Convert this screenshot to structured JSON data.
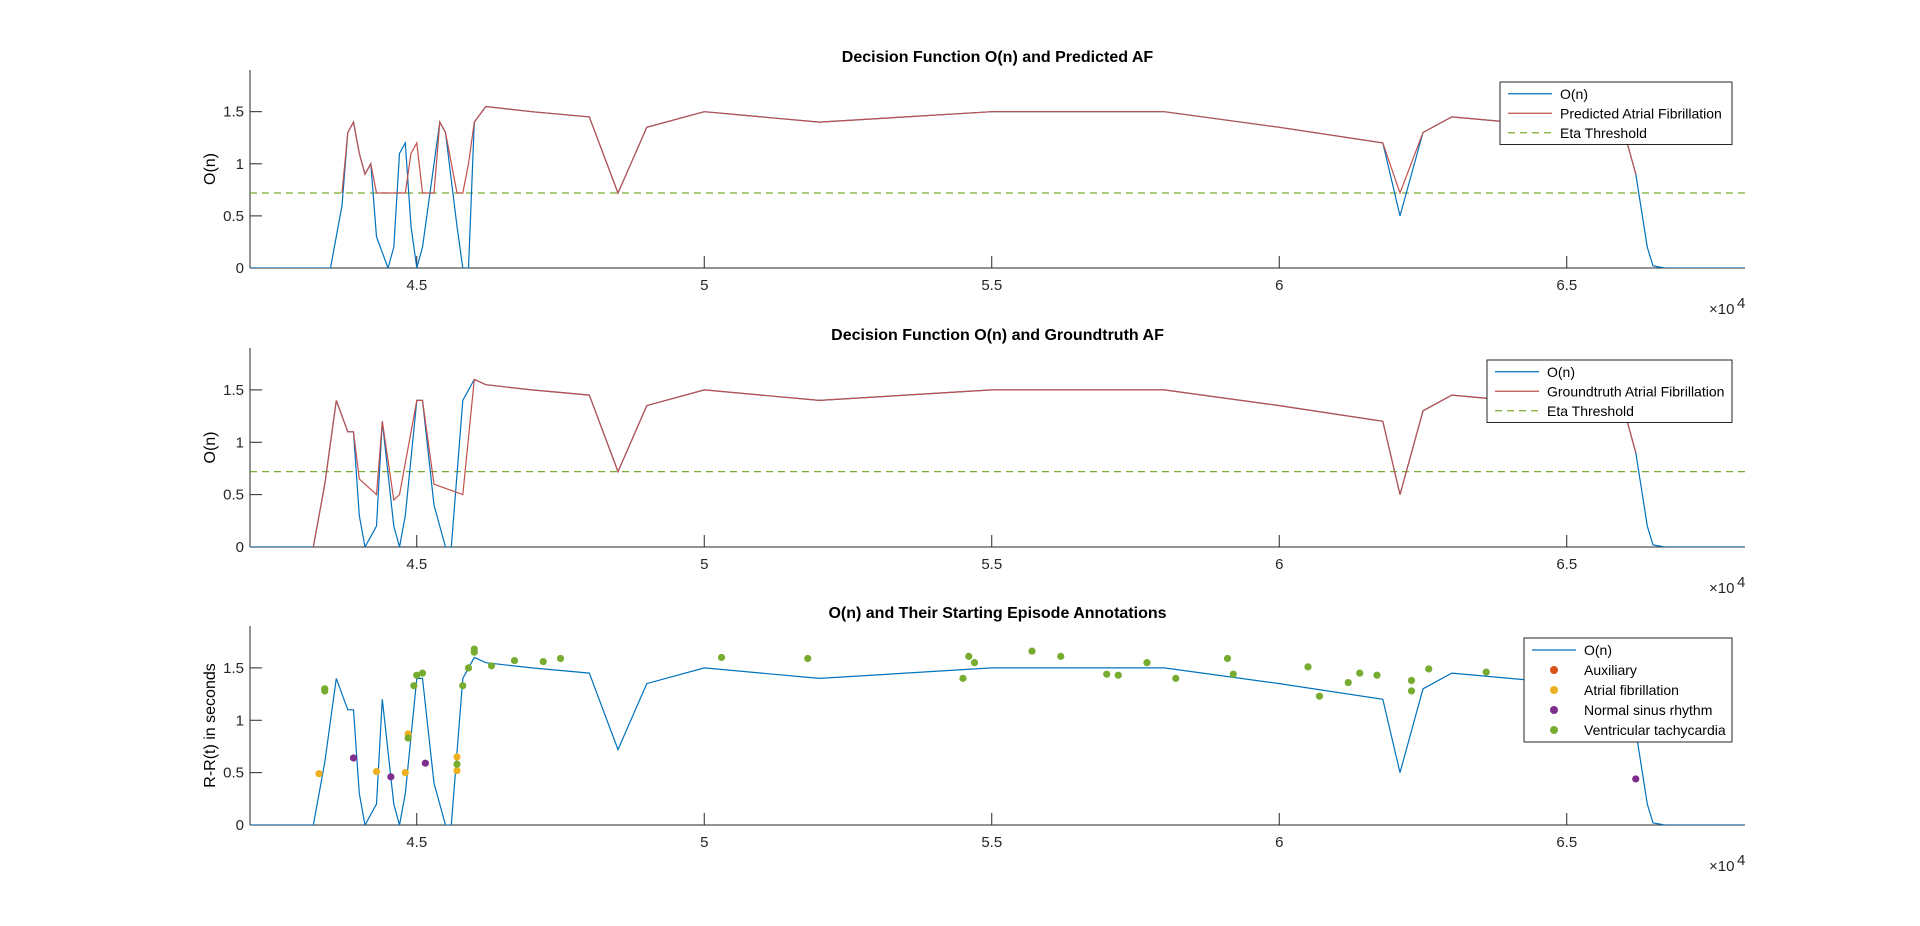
{
  "chart_data": [
    {
      "type": "line",
      "title": "Decision Function O(n) and Predicted AF",
      "xlabel": "",
      "ylabel": "O(n)",
      "xlim": [
        42100,
        68100
      ],
      "ylim": [
        0,
        1.9
      ],
      "x_multiplier": "×10",
      "x_multiplier_exp": "4",
      "xticks": [
        45000,
        50000,
        55000,
        60000,
        65000
      ],
      "xtick_labels": [
        "4.5",
        "5",
        "5.5",
        "6",
        "6.5"
      ],
      "yticks": [
        0,
        0.5,
        1,
        1.5
      ],
      "ytick_labels": [
        "0",
        "0.5",
        "1",
        "1.5"
      ],
      "threshold": 0.72,
      "legend": [
        "O(n)",
        "Predicted Atrial Fibrillation",
        "Eta Threshold"
      ],
      "legend_position": "top-right",
      "series": [
        {
          "name": "O(n)",
          "color": "#0072BD",
          "style": "solid",
          "x": [
            42100,
            43500,
            43700,
            43800,
            43900,
            44000,
            44100,
            44200,
            44300,
            44500,
            44600,
            44700,
            44800,
            44900,
            45000,
            45100,
            45300,
            45400,
            45500,
            45700,
            45800,
            45900,
            46000,
            46200,
            47000,
            48000,
            48500,
            49000,
            50000,
            52000,
            55000,
            58000,
            60000,
            61800,
            62100,
            62500,
            63000,
            65000,
            66000,
            66200,
            66400,
            66500,
            66700,
            68100
          ],
          "y": [
            0,
            0,
            0.6,
            1.3,
            1.4,
            1.1,
            0.9,
            1.0,
            0.3,
            0,
            0.2,
            1.1,
            1.2,
            0.4,
            0,
            0.2,
            1.0,
            1.4,
            1.3,
            0.4,
            0,
            0,
            1.4,
            1.55,
            1.5,
            1.45,
            0.72,
            1.35,
            1.5,
            1.4,
            1.5,
            1.5,
            1.35,
            1.2,
            0.5,
            1.3,
            1.45,
            1.35,
            1.3,
            0.9,
            0.2,
            0.02,
            0,
            0
          ]
        },
        {
          "name": "Predicted Atrial Fibrillation",
          "color": "#C0504D",
          "style": "solid",
          "x": [
            43700,
            43800,
            43900,
            44000,
            44100,
            44200,
            44300,
            44800,
            44900,
            45000,
            45100,
            45300,
            45400,
            45500,
            45700,
            45800,
            45900,
            46000,
            46200,
            47000,
            48000,
            48500,
            49000,
            50000,
            52000,
            55000,
            58000,
            60000,
            61800,
            62100,
            62500,
            63000,
            65000,
            66000,
            66200
          ],
          "y": [
            0.72,
            1.3,
            1.4,
            1.1,
            0.9,
            1.0,
            0.72,
            0.72,
            1.1,
            1.2,
            0.72,
            0.72,
            1.4,
            1.3,
            0.72,
            0.72,
            1.0,
            1.4,
            1.55,
            1.5,
            1.45,
            0.72,
            1.35,
            1.5,
            1.4,
            1.5,
            1.5,
            1.35,
            1.2,
            0.72,
            1.3,
            1.45,
            1.35,
            1.3,
            0.9
          ]
        },
        {
          "name": "Eta Threshold",
          "color": "#77AC30",
          "style": "dashed",
          "x": [
            42100,
            68100
          ],
          "y": [
            0.72,
            0.72
          ]
        }
      ]
    },
    {
      "type": "line",
      "title": "Decision Function O(n) and Groundtruth AF",
      "xlabel": "",
      "ylabel": "O(n)",
      "xlim": [
        42100,
        68100
      ],
      "ylim": [
        0,
        1.9
      ],
      "x_multiplier": "×10",
      "x_multiplier_exp": "4",
      "xticks": [
        45000,
        50000,
        55000,
        60000,
        65000
      ],
      "xtick_labels": [
        "4.5",
        "5",
        "5.5",
        "6",
        "6.5"
      ],
      "yticks": [
        0,
        0.5,
        1,
        1.5
      ],
      "ytick_labels": [
        "0",
        "0.5",
        "1",
        "1.5"
      ],
      "threshold": 0.72,
      "legend": [
        "O(n)",
        "Groundtruth Atrial Fibrillation",
        "Eta Threshold"
      ],
      "legend_position": "top-right",
      "series": [
        {
          "name": "O(n)",
          "color": "#0072BD",
          "style": "solid",
          "x": [
            42100,
            43200,
            43400,
            43600,
            43800,
            43900,
            44000,
            44100,
            44300,
            44400,
            44600,
            44700,
            44800,
            45000,
            45100,
            45300,
            45500,
            45600,
            45800,
            46000,
            46200,
            47000,
            48000,
            48500,
            49000,
            50000,
            52000,
            55000,
            58000,
            60000,
            61800,
            62100,
            62500,
            63000,
            65000,
            66000,
            66200,
            66400,
            66500,
            66700,
            68100
          ],
          "y": [
            0,
            0,
            0.6,
            1.4,
            1.1,
            1.1,
            0.3,
            0,
            0.2,
            1.2,
            0.2,
            0,
            0.3,
            1.4,
            1.4,
            0.4,
            0,
            0,
            1.4,
            1.6,
            1.55,
            1.5,
            1.45,
            0.72,
            1.35,
            1.5,
            1.4,
            1.5,
            1.5,
            1.35,
            1.2,
            0.5,
            1.3,
            1.45,
            1.35,
            1.3,
            0.9,
            0.2,
            0.02,
            0,
            0
          ]
        },
        {
          "name": "Groundtruth Atrial Fibrillation",
          "color": "#C0504D",
          "style": "solid",
          "x": [
            43200,
            43400,
            43600,
            43800,
            43900,
            44000,
            44300,
            44400,
            44600,
            44700,
            45000,
            45100,
            45300,
            45800,
            46000,
            46200,
            47000,
            48000,
            48500,
            49000,
            50000,
            52000,
            55000,
            58000,
            60000,
            61800,
            62100,
            62500,
            63000,
            65000,
            66000,
            66200
          ],
          "y": [
            0,
            0.6,
            1.4,
            1.1,
            1.1,
            0.65,
            0.5,
            1.2,
            0.45,
            0.5,
            1.4,
            1.4,
            0.6,
            0.5,
            1.6,
            1.55,
            1.5,
            1.45,
            0.72,
            1.35,
            1.5,
            1.4,
            1.5,
            1.5,
            1.35,
            1.2,
            0.5,
            1.3,
            1.45,
            1.35,
            1.3,
            0.9
          ]
        },
        {
          "name": "Eta Threshold",
          "color": "#77AC30",
          "style": "dashed",
          "x": [
            42100,
            68100
          ],
          "y": [
            0.72,
            0.72
          ]
        }
      ]
    },
    {
      "type": "line",
      "title": "O(n) and Their Starting Episode Annotations",
      "xlabel": "",
      "ylabel": "R-R(t) in seconds",
      "xlim": [
        42100,
        68100
      ],
      "ylim": [
        0,
        1.9
      ],
      "x_multiplier": "×10",
      "x_multiplier_exp": "4",
      "xticks": [
        45000,
        50000,
        55000,
        60000,
        65000
      ],
      "xtick_labels": [
        "4.5",
        "5",
        "5.5",
        "6",
        "6.5"
      ],
      "yticks": [
        0,
        0.5,
        1,
        1.5
      ],
      "ytick_labels": [
        "0",
        "0.5",
        "1",
        "1.5"
      ],
      "legend": [
        "O(n)",
        "Auxiliary",
        "Atrial fibrillation",
        "Normal sinus rhythm",
        "Ventricular tachycardia"
      ],
      "legend_position": "top-right",
      "series": [
        {
          "name": "O(n)",
          "color": "#0072BD",
          "style": "solid",
          "x": [
            42100,
            43200,
            43400,
            43600,
            43800,
            43900,
            44000,
            44100,
            44300,
            44400,
            44600,
            44700,
            44800,
            45000,
            45100,
            45300,
            45500,
            45600,
            45800,
            46000,
            46200,
            47000,
            48000,
            48500,
            49000,
            50000,
            52000,
            55000,
            58000,
            60000,
            61800,
            62100,
            62500,
            63000,
            65000,
            66000,
            66200,
            66400,
            66500,
            66700,
            68100
          ],
          "y": [
            0,
            0,
            0.6,
            1.4,
            1.1,
            1.1,
            0.3,
            0,
            0.2,
            1.2,
            0.2,
            0,
            0.3,
            1.4,
            1.4,
            0.4,
            0,
            0,
            1.4,
            1.6,
            1.55,
            1.5,
            1.45,
            0.72,
            1.35,
            1.5,
            1.4,
            1.5,
            1.5,
            1.35,
            1.2,
            0.5,
            1.3,
            1.45,
            1.35,
            1.3,
            0.9,
            0.2,
            0.02,
            0,
            0
          ]
        }
      ],
      "markers": [
        {
          "name": "Auxiliary",
          "color": "#D95319",
          "points": []
        },
        {
          "name": "Atrial fibrillation",
          "color": "#EDB120",
          "points": [
            [
              43300,
              0.49
            ],
            [
              44300,
              0.51
            ],
            [
              44800,
              0.5
            ],
            [
              44850,
              0.87
            ],
            [
              45700,
              0.65
            ],
            [
              45700,
              0.52
            ]
          ]
        },
        {
          "name": "Normal sinus rhythm",
          "color": "#7E2F8E",
          "points": [
            [
              43900,
              0.64
            ],
            [
              44550,
              0.46
            ],
            [
              45150,
              0.59
            ],
            [
              66200,
              0.44
            ]
          ]
        },
        {
          "name": "Ventricular tachycardia",
          "color": "#77AC30",
          "points": [
            [
              43400,
              1.28
            ],
            [
              43400,
              1.3
            ],
            [
              44850,
              0.83
            ],
            [
              44950,
              1.33
            ],
            [
              45000,
              1.43
            ],
            [
              45100,
              1.45
            ],
            [
              45700,
              0.58
            ],
            [
              45800,
              1.33
            ],
            [
              45900,
              1.5
            ],
            [
              46000,
              1.68
            ],
            [
              46000,
              1.65
            ],
            [
              46300,
              1.52
            ],
            [
              46700,
              1.57
            ],
            [
              47200,
              1.56
            ],
            [
              47500,
              1.59
            ],
            [
              50300,
              1.6
            ],
            [
              51800,
              1.59
            ],
            [
              54500,
              1.4
            ],
            [
              54600,
              1.61
            ],
            [
              54700,
              1.55
            ],
            [
              55700,
              1.66
            ],
            [
              56200,
              1.61
            ],
            [
              57000,
              1.44
            ],
            [
              57200,
              1.43
            ],
            [
              57700,
              1.55
            ],
            [
              58200,
              1.4
            ],
            [
              59100,
              1.59
            ],
            [
              59200,
              1.44
            ],
            [
              60500,
              1.51
            ],
            [
              60700,
              1.23
            ],
            [
              61200,
              1.36
            ],
            [
              61400,
              1.45
            ],
            [
              61700,
              1.43
            ],
            [
              62300,
              1.28
            ],
            [
              62300,
              1.38
            ],
            [
              62600,
              1.49
            ],
            [
              63600,
              1.46
            ]
          ]
        }
      ]
    }
  ]
}
